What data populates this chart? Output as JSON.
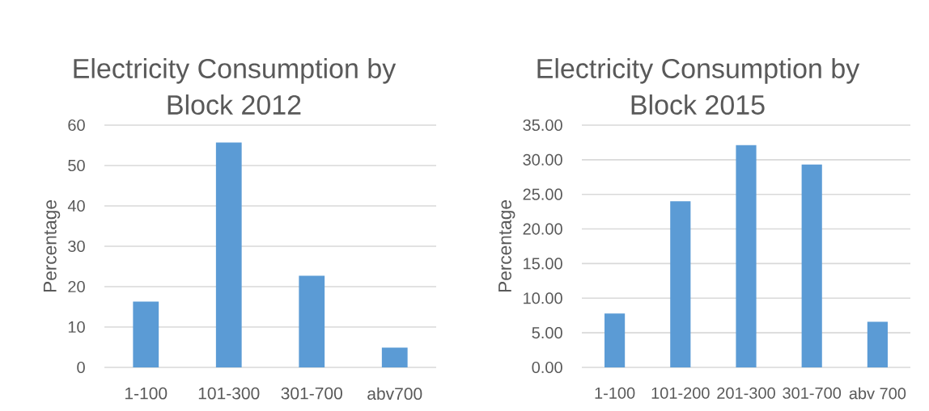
{
  "chart_data": [
    {
      "type": "bar",
      "title": "Electricity Consumption by Block 2012",
      "ylabel": "Percentage",
      "categories": [
        "1-100",
        "101-300",
        "301-700",
        "abv700"
      ],
      "values": [
        16.3,
        55.7,
        22.7,
        4.9
      ],
      "color": "#5b9bd5",
      "ylim": [
        0,
        60
      ],
      "yticks": [
        0,
        10,
        20,
        30,
        40,
        50,
        60
      ],
      "grid": "y"
    },
    {
      "type": "bar",
      "title": "Electricity Consumption by Block 2015",
      "ylabel": "Percentage",
      "categories": [
        "1-100",
        "101-200",
        "201-300",
        "301-700",
        "abv 700"
      ],
      "values": [
        7.8,
        24.0,
        32.1,
        29.3,
        6.6
      ],
      "color": "#5b9bd5",
      "ylim": [
        0,
        35
      ],
      "yticks": [
        {
          "value": 0,
          "label": "0.00"
        },
        {
          "value": 5,
          "label": "5.00"
        },
        {
          "value": 10,
          "label": "10.00"
        },
        {
          "value": 15,
          "label": "15.00"
        },
        {
          "value": 20,
          "label": "20.00"
        },
        {
          "value": 25,
          "label": "25.00"
        },
        {
          "value": 30,
          "label": "30.00"
        },
        {
          "value": 35,
          "label": "35.00"
        }
      ],
      "grid": "y"
    }
  ]
}
